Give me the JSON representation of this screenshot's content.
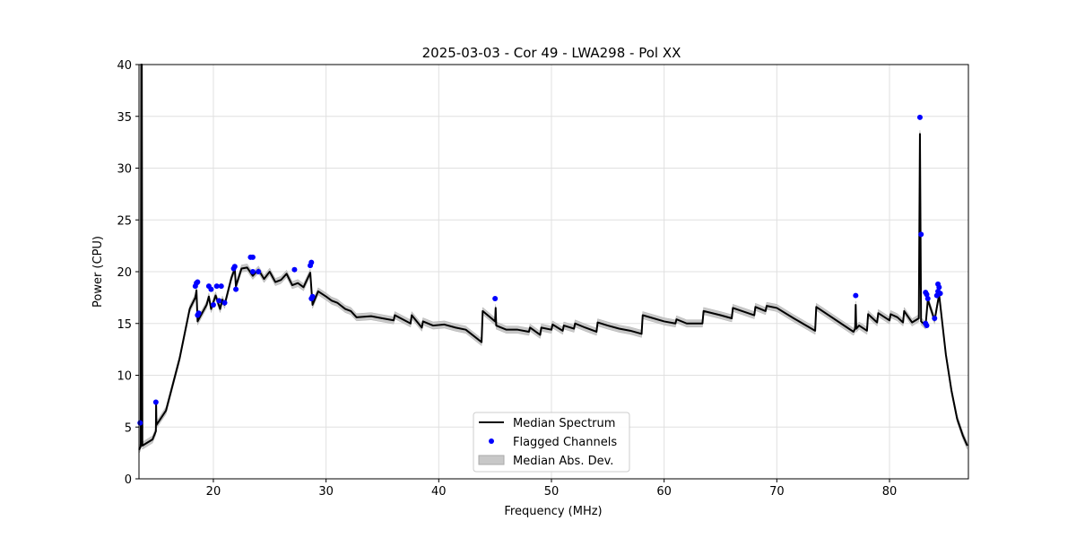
{
  "chart_data": {
    "type": "line",
    "title": "2025-03-03 - Cor 49 - LWA298 - Pol XX",
    "xlabel": "Frequency (MHz)",
    "ylabel": "Power (CPU)",
    "xlim": [
      13.4,
      87.0
    ],
    "ylim": [
      0,
      40
    ],
    "xticks": [
      20,
      30,
      40,
      50,
      60,
      70,
      80
    ],
    "yticks": [
      0,
      5,
      10,
      15,
      20,
      25,
      30,
      35,
      40
    ],
    "grid": true,
    "legend_position": "lower-center",
    "legend": [
      "Median Spectrum",
      "Flagged Channels",
      "Median Abs. Dev."
    ],
    "mad": 0.35,
    "colors": {
      "line": "#000000",
      "flagged": "#0000ff",
      "band": "#c8c8c8"
    },
    "median_spectrum": [
      [
        13.4,
        2.8
      ],
      [
        13.55,
        3.1
      ],
      [
        13.6,
        40
      ],
      [
        13.65,
        40
      ],
      [
        13.7,
        3.2
      ],
      [
        14.6,
        3.8
      ],
      [
        14.9,
        4.6
      ],
      [
        14.92,
        7.3
      ],
      [
        14.95,
        5.2
      ],
      [
        15.8,
        6.6
      ],
      [
        17.0,
        11.6
      ],
      [
        17.9,
        16.4
      ],
      [
        18.4,
        17.5
      ],
      [
        18.5,
        18.2
      ],
      [
        18.6,
        15.2
      ],
      [
        19.0,
        16.0
      ],
      [
        19.4,
        16.8
      ],
      [
        19.6,
        17.6
      ],
      [
        19.8,
        16.4
      ],
      [
        20.2,
        17.7
      ],
      [
        20.6,
        16.4
      ],
      [
        20.8,
        17.3
      ],
      [
        21.0,
        16.8
      ],
      [
        21.6,
        19.4
      ],
      [
        21.9,
        20.3
      ],
      [
        22.0,
        18.6
      ],
      [
        22.5,
        20.3
      ],
      [
        23.0,
        20.4
      ],
      [
        23.5,
        19.6
      ],
      [
        24.0,
        20.2
      ],
      [
        24.5,
        19.3
      ],
      [
        25.0,
        20.0
      ],
      [
        25.5,
        19.0
      ],
      [
        26.0,
        19.2
      ],
      [
        26.5,
        19.8
      ],
      [
        27.0,
        18.7
      ],
      [
        27.5,
        18.9
      ],
      [
        28.0,
        18.5
      ],
      [
        28.6,
        19.9
      ],
      [
        28.8,
        16.8
      ],
      [
        29.3,
        18.1
      ],
      [
        30.0,
        17.6
      ],
      [
        30.5,
        17.2
      ],
      [
        31.0,
        17.0
      ],
      [
        31.7,
        16.4
      ],
      [
        32.2,
        16.2
      ],
      [
        32.7,
        15.6
      ],
      [
        34.0,
        15.7
      ],
      [
        35.0,
        15.5
      ],
      [
        36.0,
        15.3
      ],
      [
        36.1,
        15.8
      ],
      [
        37.5,
        15.0
      ],
      [
        37.6,
        15.8
      ],
      [
        38.5,
        14.6
      ],
      [
        38.6,
        15.2
      ],
      [
        39.5,
        14.8
      ],
      [
        40.5,
        14.9
      ],
      [
        41.5,
        14.6
      ],
      [
        42.4,
        14.4
      ],
      [
        43.8,
        13.2
      ],
      [
        43.9,
        16.2
      ],
      [
        45.0,
        15.2
      ],
      [
        45.05,
        16.5
      ],
      [
        45.1,
        14.8
      ],
      [
        46.0,
        14.4
      ],
      [
        47.0,
        14.4
      ],
      [
        48.0,
        14.2
      ],
      [
        48.1,
        14.6
      ],
      [
        49.0,
        13.9
      ],
      [
        49.1,
        14.6
      ],
      [
        50.0,
        14.4
      ],
      [
        50.1,
        14.9
      ],
      [
        51.0,
        14.3
      ],
      [
        51.1,
        14.8
      ],
      [
        52.0,
        14.5
      ],
      [
        52.1,
        15.0
      ],
      [
        53.0,
        14.6
      ],
      [
        54.0,
        14.2
      ],
      [
        54.1,
        15.1
      ],
      [
        55.0,
        14.8
      ],
      [
        56.0,
        14.5
      ],
      [
        57.0,
        14.3
      ],
      [
        58.0,
        14.0
      ],
      [
        58.1,
        15.8
      ],
      [
        60.0,
        15.2
      ],
      [
        61.0,
        15.0
      ],
      [
        61.1,
        15.4
      ],
      [
        62.0,
        15.0
      ],
      [
        63.4,
        15.0
      ],
      [
        63.5,
        16.2
      ],
      [
        65.0,
        15.8
      ],
      [
        66.0,
        15.5
      ],
      [
        66.1,
        16.5
      ],
      [
        68.0,
        15.8
      ],
      [
        68.1,
        16.6
      ],
      [
        69.0,
        16.2
      ],
      [
        69.1,
        16.7
      ],
      [
        70.0,
        16.5
      ],
      [
        71.5,
        15.5
      ],
      [
        73.4,
        14.3
      ],
      [
        73.5,
        16.6
      ],
      [
        76.8,
        14.2
      ],
      [
        76.95,
        14.5
      ],
      [
        77.0,
        16.8
      ],
      [
        77.05,
        14.5
      ],
      [
        77.3,
        14.8
      ],
      [
        78.0,
        14.3
      ],
      [
        78.1,
        15.9
      ],
      [
        78.9,
        15.1
      ],
      [
        79.0,
        16.0
      ],
      [
        80.0,
        15.3
      ],
      [
        80.1,
        15.9
      ],
      [
        80.7,
        15.6
      ],
      [
        81.2,
        15.1
      ],
      [
        81.3,
        16.2
      ],
      [
        82.0,
        15.1
      ],
      [
        82.6,
        15.5
      ],
      [
        82.7,
        33.3
      ],
      [
        82.8,
        15.2
      ],
      [
        83.2,
        14.8
      ],
      [
        83.4,
        17.3
      ],
      [
        84.0,
        15.3
      ],
      [
        84.4,
        17.8
      ],
      [
        85.0,
        12.0
      ],
      [
        85.5,
        8.5
      ],
      [
        86.0,
        5.8
      ],
      [
        86.5,
        4.2
      ],
      [
        86.9,
        3.2
      ]
    ],
    "flagged_channels": [
      [
        13.5,
        5.4
      ],
      [
        14.9,
        7.4
      ],
      [
        18.4,
        18.6
      ],
      [
        18.5,
        18.9
      ],
      [
        18.6,
        19.0
      ],
      [
        18.7,
        16.0
      ],
      [
        18.6,
        15.8
      ],
      [
        19.6,
        18.6
      ],
      [
        19.8,
        18.3
      ],
      [
        20.3,
        18.6
      ],
      [
        20.7,
        18.6
      ],
      [
        20.0,
        16.8
      ],
      [
        20.5,
        17.2
      ],
      [
        21.0,
        17.0
      ],
      [
        21.8,
        20.3
      ],
      [
        21.9,
        20.5
      ],
      [
        22.0,
        18.3
      ],
      [
        23.3,
        21.4
      ],
      [
        23.5,
        21.4
      ],
      [
        23.5,
        20.0
      ],
      [
        24.0,
        20.0
      ],
      [
        27.2,
        20.2
      ],
      [
        28.6,
        20.6
      ],
      [
        28.7,
        20.9
      ],
      [
        28.7,
        17.4
      ],
      [
        28.8,
        17.6
      ],
      [
        45.0,
        17.4
      ],
      [
        77.0,
        17.7
      ],
      [
        82.7,
        34.9
      ],
      [
        82.8,
        23.6
      ],
      [
        83.2,
        18.0
      ],
      [
        83.3,
        17.8
      ],
      [
        83.4,
        17.4
      ],
      [
        83.2,
        15.0
      ],
      [
        83.3,
        14.8
      ],
      [
        84.0,
        15.5
      ],
      [
        84.2,
        17.7
      ],
      [
        84.3,
        18.1
      ],
      [
        84.3,
        18.8
      ],
      [
        84.4,
        18.5
      ],
      [
        84.5,
        17.9
      ]
    ]
  }
}
